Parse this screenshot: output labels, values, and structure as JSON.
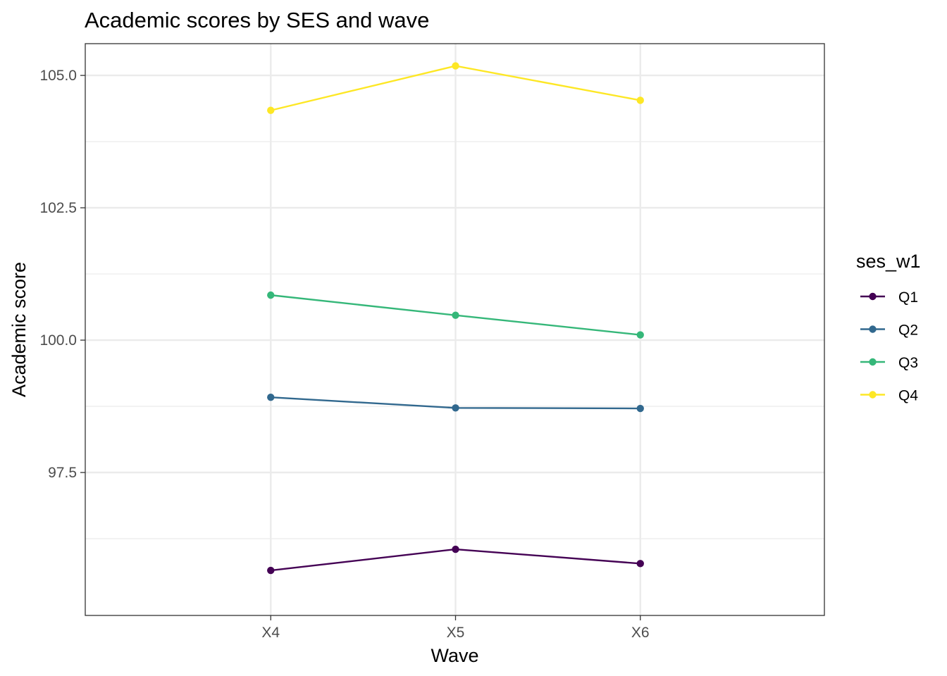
{
  "chart_data": {
    "type": "line",
    "title": "Academic scores by SES and wave",
    "xlabel": "Wave",
    "ylabel": "Academic score",
    "categories": [
      "X4",
      "X5",
      "X6"
    ],
    "ylim": [
      94.8,
      105.6
    ],
    "y_ticks": [
      97.5,
      100.0,
      102.5,
      105.0
    ],
    "y_tick_labels": [
      "97.5",
      "100.0",
      "102.5",
      "105.0"
    ],
    "grid": true,
    "legend": {
      "title": "ses_w1",
      "position": "right"
    },
    "series": [
      {
        "name": "Q1",
        "color": "#440154",
        "values": [
          95.65,
          96.05,
          95.78
        ]
      },
      {
        "name": "Q2",
        "color": "#31688E",
        "values": [
          98.92,
          98.72,
          98.71
        ]
      },
      {
        "name": "Q3",
        "color": "#35B779",
        "values": [
          100.85,
          100.47,
          100.1
        ]
      },
      {
        "name": "Q4",
        "color": "#FDE725",
        "values": [
          104.34,
          105.18,
          104.53
        ]
      }
    ]
  }
}
